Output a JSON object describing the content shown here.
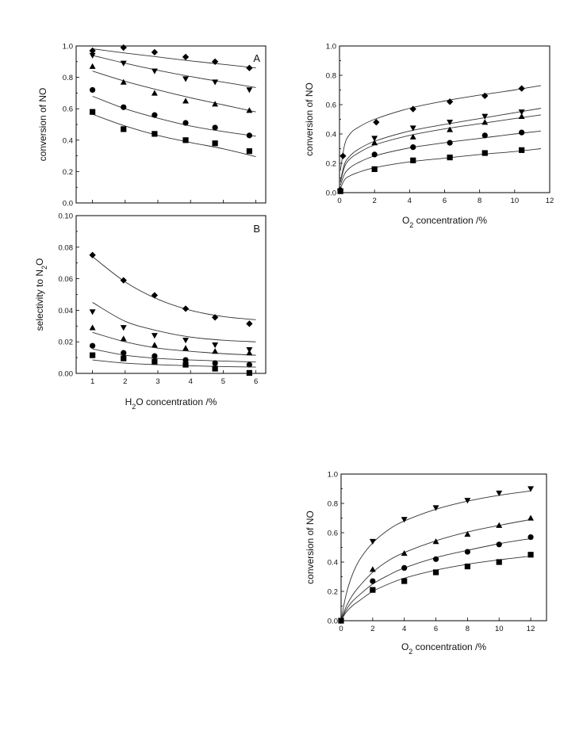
{
  "chart_data": [
    {
      "id": "A",
      "type": "scatter",
      "panel_label": "A",
      "ylabel": "conversion of NO",
      "xlabel": "",
      "xlim": [
        0.5,
        6.3
      ],
      "ylim": [
        0.0,
        1.0
      ],
      "xticks": [
        1,
        2,
        3,
        4,
        5,
        6
      ],
      "yticks": [
        0.0,
        0.2,
        0.4,
        0.6,
        0.8,
        1.0
      ],
      "ytick_labels": [
        "0.0",
        "0.2",
        "0.4",
        "0.6",
        "0.8",
        "1.0"
      ],
      "show_x_tick_labels": false,
      "series": [
        {
          "marker": "diamond",
          "x": [
            1.0,
            1.95,
            2.9,
            3.85,
            4.75,
            5.8
          ],
          "y": [
            0.97,
            0.99,
            0.96,
            0.93,
            0.9,
            0.86
          ],
          "fit": {
            "x": [
              1.0,
              2.0,
              3.0,
              4.0,
              5.0,
              6.0
            ],
            "y": [
              0.982,
              0.955,
              0.93,
              0.905,
              0.883,
              0.86
            ]
          }
        },
        {
          "marker": "triangle-down",
          "x": [
            1.0,
            1.95,
            2.9,
            3.85,
            4.75,
            5.8
          ],
          "y": [
            0.94,
            0.89,
            0.84,
            0.79,
            0.77,
            0.72
          ],
          "fit": {
            "x": [
              1.0,
              2.0,
              3.0,
              4.0,
              5.0,
              6.0
            ],
            "y": [
              0.94,
              0.89,
              0.845,
              0.805,
              0.77,
              0.735
            ]
          }
        },
        {
          "marker": "triangle-up",
          "x": [
            1.0,
            1.95,
            2.9,
            3.85,
            4.75,
            5.8
          ],
          "y": [
            0.87,
            0.77,
            0.7,
            0.65,
            0.63,
            0.59
          ],
          "fit": {
            "x": [
              1.0,
              2.0,
              3.0,
              4.0,
              5.0,
              6.0
            ],
            "y": [
              0.84,
              0.775,
              0.72,
              0.67,
              0.625,
              0.58
            ]
          }
        },
        {
          "marker": "circle",
          "x": [
            1.0,
            1.95,
            2.9,
            3.85,
            4.75,
            5.8
          ],
          "y": [
            0.72,
            0.61,
            0.56,
            0.51,
            0.48,
            0.43
          ],
          "fit": {
            "x": [
              1.0,
              2.0,
              3.0,
              4.0,
              5.0,
              6.0
            ],
            "y": [
              0.68,
              0.6,
              0.54,
              0.49,
              0.455,
              0.425
            ]
          }
        },
        {
          "marker": "square",
          "x": [
            1.0,
            1.95,
            2.9,
            3.85,
            4.75,
            5.8
          ],
          "y": [
            0.58,
            0.47,
            0.44,
            0.4,
            0.38,
            0.33
          ],
          "fit": {
            "x": [
              1.0,
              2.0,
              3.0,
              4.0,
              5.0,
              6.0
            ],
            "y": [
              0.565,
              0.49,
              0.43,
              0.385,
              0.345,
              0.295
            ]
          }
        }
      ]
    },
    {
      "id": "B",
      "type": "scatter",
      "panel_label": "B",
      "ylabel": "selectivity to N",
      "ylabel_sub": "2",
      "ylabel_tail": "O",
      "xlabel": "H",
      "xlabel_sub": "2",
      "xlabel_tail": "O concentration /%",
      "xlim": [
        0.5,
        6.3
      ],
      "ylim": [
        0.0,
        0.1
      ],
      "xticks": [
        1,
        2,
        3,
        4,
        5,
        6
      ],
      "xtick_labels": [
        "1",
        "2",
        "3",
        "4",
        "5",
        "6"
      ],
      "yticks": [
        0.0,
        0.02,
        0.04,
        0.06,
        0.08,
        0.1
      ],
      "ytick_labels": [
        "0.00",
        "0.02",
        "0.04",
        "0.06",
        "0.08",
        "0.10"
      ],
      "show_x_tick_labels": true,
      "series": [
        {
          "marker": "diamond",
          "x": [
            1.0,
            1.95,
            2.9,
            3.85,
            4.75,
            5.8
          ],
          "y": [
            0.075,
            0.059,
            0.0495,
            0.041,
            0.0355,
            0.0315
          ],
          "fit": {
            "x": [
              1.0,
              2.0,
              3.0,
              4.0,
              5.0,
              6.0
            ],
            "y": [
              0.074,
              0.058,
              0.047,
              0.04,
              0.036,
              0.034
            ]
          }
        },
        {
          "marker": "triangle-down",
          "x": [
            1.0,
            1.95,
            2.9,
            3.85,
            4.75,
            5.8
          ],
          "y": [
            0.039,
            0.029,
            0.024,
            0.021,
            0.018,
            0.015
          ],
          "fit": {
            "x": [
              1.0,
              2.0,
              3.0,
              4.0,
              5.0,
              6.0
            ],
            "y": [
              0.045,
              0.033,
              0.027,
              0.023,
              0.021,
              0.02
            ]
          }
        },
        {
          "marker": "triangle-up",
          "x": [
            1.0,
            1.95,
            2.9,
            3.85,
            4.75,
            5.8
          ],
          "y": [
            0.029,
            0.022,
            0.018,
            0.016,
            0.014,
            0.013
          ],
          "fit": {
            "x": [
              1.0,
              2.0,
              3.0,
              4.0,
              5.0,
              6.0
            ],
            "y": [
              0.026,
              0.02,
              0.016,
              0.014,
              0.0125,
              0.0115
            ]
          }
        },
        {
          "marker": "circle",
          "x": [
            1.0,
            1.95,
            2.9,
            3.85,
            4.75,
            5.8
          ],
          "y": [
            0.0175,
            0.013,
            0.011,
            0.0085,
            0.0065,
            0.0055
          ],
          "fit": {
            "x": [
              1.0,
              2.0,
              3.0,
              4.0,
              5.0,
              6.0
            ],
            "y": [
              0.0155,
              0.0115,
              0.0095,
              0.0085,
              0.0078,
              0.0072
            ]
          }
        },
        {
          "marker": "square",
          "x": [
            1.0,
            1.95,
            2.9,
            3.85,
            4.75,
            5.8
          ],
          "y": [
            0.0115,
            0.0095,
            0.0075,
            0.0055,
            0.003,
            0.0003
          ],
          "fit": {
            "x": [
              1.0,
              2.0,
              3.0,
              4.0,
              5.0,
              6.0
            ],
            "y": [
              0.0085,
              0.0065,
              0.0055,
              0.0048,
              0.0043,
              0.004
            ]
          }
        }
      ]
    },
    {
      "id": "C",
      "type": "scatter",
      "panel_label": "",
      "ylabel": "conversion of NO",
      "xlabel": "O",
      "xlabel_sub": "2",
      "xlabel_tail": " concentration /%",
      "xlim": [
        0,
        12
      ],
      "ylim": [
        0.0,
        1.0
      ],
      "xticks": [
        0,
        2,
        4,
        6,
        8,
        10,
        12
      ],
      "xtick_labels": [
        "0",
        "2",
        "4",
        "6",
        "8",
        "10",
        "12"
      ],
      "yticks": [
        0.0,
        0.2,
        0.4,
        0.6,
        0.8,
        1.0
      ],
      "ytick_labels": [
        "0.0",
        "0.2",
        "0.4",
        "0.6",
        "0.8",
        "1.0"
      ],
      "show_x_tick_labels": true,
      "series": [
        {
          "marker": "diamond",
          "x": [
            0.05,
            0.2,
            2.1,
            4.2,
            6.3,
            8.3,
            10.4
          ],
          "y": [
            0.02,
            0.25,
            0.48,
            0.57,
            0.62,
            0.66,
            0.71
          ],
          "fit": {
            "x": [
              0.05,
              0.3,
              0.6,
              1.0,
              2.0,
              4.0,
              6.0,
              8.0,
              10.0,
              11.5
            ],
            "y": [
              0.15,
              0.33,
              0.4,
              0.44,
              0.5,
              0.575,
              0.625,
              0.665,
              0.7,
              0.73
            ]
          }
        },
        {
          "marker": "triangle-down",
          "x": [
            0.05,
            2.0,
            4.2,
            6.3,
            8.3,
            10.4
          ],
          "y": [
            0.01,
            0.37,
            0.44,
            0.48,
            0.52,
            0.55
          ],
          "fit": {
            "x": [
              0.05,
              0.3,
              0.6,
              1.0,
              2.0,
              4.0,
              6.0,
              8.0,
              10.0,
              11.5
            ],
            "y": [
              0.08,
              0.2,
              0.25,
              0.29,
              0.35,
              0.42,
              0.465,
              0.505,
              0.545,
              0.575
            ]
          }
        },
        {
          "marker": "triangle-up",
          "x": [
            0.05,
            2.0,
            4.2,
            6.3,
            8.3,
            10.4
          ],
          "y": [
            0.01,
            0.34,
            0.38,
            0.43,
            0.48,
            0.52
          ],
          "fit": {
            "x": [
              0.05,
              0.3,
              0.6,
              1.0,
              2.0,
              4.0,
              6.0,
              8.0,
              10.0,
              11.5
            ],
            "y": [
              0.07,
              0.18,
              0.23,
              0.265,
              0.325,
              0.39,
              0.435,
              0.47,
              0.505,
              0.53
            ]
          }
        },
        {
          "marker": "circle",
          "x": [
            0.05,
            2.0,
            4.2,
            6.3,
            8.3,
            10.4
          ],
          "y": [
            0.01,
            0.26,
            0.31,
            0.34,
            0.39,
            0.41
          ],
          "fit": {
            "x": [
              0.05,
              0.3,
              0.6,
              1.0,
              2.0,
              4.0,
              6.0,
              8.0,
              10.0,
              11.5
            ],
            "y": [
              0.05,
              0.13,
              0.17,
              0.2,
              0.25,
              0.305,
              0.34,
              0.37,
              0.4,
              0.42
            ]
          }
        },
        {
          "marker": "square",
          "x": [
            0.05,
            2.0,
            4.2,
            6.3,
            8.3,
            10.4
          ],
          "y": [
            0.01,
            0.16,
            0.22,
            0.24,
            0.27,
            0.29
          ],
          "fit": {
            "x": [
              0.05,
              0.3,
              0.6,
              1.0,
              2.0,
              4.0,
              6.0,
              8.0,
              10.0,
              11.5
            ],
            "y": [
              0.03,
              0.09,
              0.115,
              0.135,
              0.17,
              0.21,
              0.235,
              0.26,
              0.28,
              0.3
            ]
          }
        }
      ]
    },
    {
      "id": "D",
      "type": "scatter",
      "panel_label": "",
      "ylabel": "conversion of NO",
      "xlabel": "O",
      "xlabel_sub": "2",
      "xlabel_tail": " concentration /%",
      "xlim": [
        0,
        13
      ],
      "ylim": [
        0.0,
        1.0
      ],
      "xticks": [
        0,
        2,
        4,
        6,
        8,
        10,
        12
      ],
      "xtick_labels": [
        "0",
        "2",
        "4",
        "6",
        "8",
        "10",
        "12"
      ],
      "yticks": [
        0.0,
        0.2,
        0.4,
        0.6,
        0.8,
        1.0
      ],
      "ytick_labels": [
        "0.0",
        "0.2",
        "0.4",
        "0.6",
        "0.8",
        "1.0"
      ],
      "show_x_tick_labels": true,
      "series": [
        {
          "marker": "triangle-down",
          "x": [
            0,
            2,
            4,
            6,
            8,
            10,
            12
          ],
          "y": [
            0.0,
            0.54,
            0.69,
            0.77,
            0.82,
            0.87,
            0.9
          ],
          "fit": {
            "x": [
              0,
              0.3,
              0.7,
              1.2,
              2,
              3,
              4,
              6,
              8,
              10,
              12
            ],
            "y": [
              0.0,
              0.17,
              0.31,
              0.42,
              0.53,
              0.62,
              0.68,
              0.76,
              0.815,
              0.855,
              0.885
            ]
          }
        },
        {
          "marker": "triangle-up",
          "x": [
            2,
            4,
            6,
            8,
            10,
            12
          ],
          "y": [
            0.35,
            0.46,
            0.54,
            0.59,
            0.65,
            0.7
          ],
          "fit": {
            "x": [
              0,
              0.3,
              0.7,
              1.2,
              2,
              3,
              4,
              6,
              8,
              10,
              12
            ],
            "y": [
              0.0,
              0.09,
              0.17,
              0.24,
              0.33,
              0.41,
              0.465,
              0.545,
              0.605,
              0.65,
              0.69
            ]
          }
        },
        {
          "marker": "circle",
          "x": [
            2,
            4,
            6,
            8,
            10,
            12
          ],
          "y": [
            0.27,
            0.36,
            0.42,
            0.47,
            0.52,
            0.57
          ],
          "fit": {
            "x": [
              0,
              0.3,
              0.7,
              1.2,
              2,
              3,
              4,
              6,
              8,
              10,
              12
            ],
            "y": [
              0.0,
              0.07,
              0.13,
              0.18,
              0.25,
              0.31,
              0.36,
              0.43,
              0.48,
              0.525,
              0.56
            ]
          }
        },
        {
          "marker": "square",
          "x": [
            0,
            2,
            4,
            6,
            8,
            10,
            12
          ],
          "y": [
            0.0,
            0.21,
            0.27,
            0.33,
            0.37,
            0.4,
            0.45
          ],
          "fit": {
            "x": [
              0,
              0.3,
              0.7,
              1.2,
              2,
              3,
              4,
              6,
              8,
              10,
              12
            ],
            "y": [
              0.0,
              0.055,
              0.1,
              0.14,
              0.2,
              0.25,
              0.29,
              0.345,
              0.385,
              0.415,
              0.44
            ]
          }
        }
      ]
    }
  ]
}
